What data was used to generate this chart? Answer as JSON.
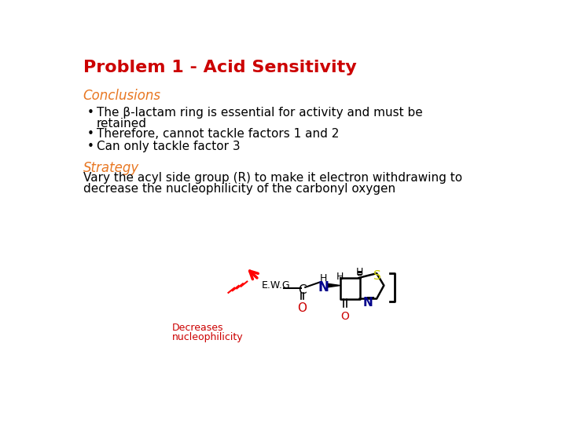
{
  "title": "Problem 1 - Acid Sensitivity",
  "title_color": "#CC0000",
  "title_fontsize": 16,
  "conclusions_label": "Conclusions",
  "conclusions_color": "#E87722",
  "conclusions_fontsize": 12,
  "bullet1": "The β-lactam ring is essential for activity and must be",
  "bullet1b": "retained",
  "bullet2": "Therefore, cannot tackle factors 1 and 2",
  "bullet3": "Can only tackle factor 3",
  "bullet_color": "#000000",
  "bullet_fontsize": 11,
  "strategy_label": "Strategy",
  "strategy_color": "#E87722",
  "strategy_fontsize": 12,
  "strategy_line1": "Vary the acyl side group (R) to make it electron withdrawing to",
  "strategy_line2": "decrease the nucleophilicity of the carbonyl oxygen",
  "strategy_text_color": "#000000",
  "strategy_text_fontsize": 11,
  "ewg_label": "E.W.G.",
  "ewg_color": "#000000",
  "decreases_line1": "Decreases",
  "decreases_line2": "nucleophilicity",
  "decreases_color": "#CC0000",
  "background_color": "#FFFFFF",
  "n_color": "#00008B",
  "s_color": "#CCCC00",
  "o_color": "#CC0000",
  "c_color": "#000000"
}
